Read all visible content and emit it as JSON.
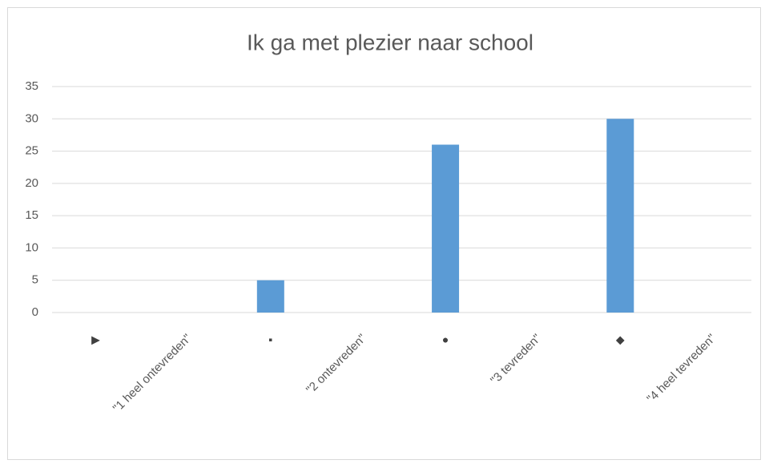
{
  "chart_data": {
    "type": "bar",
    "title": "Ik ga met plezier naar school",
    "categories": [
      "▶",
      "\"1 heel ontevreden\"",
      "▪",
      "\"2 ontevreden\"",
      "●",
      "\"3 tevreden\"",
      "◆",
      "\"4 heel tevreden\""
    ],
    "values": [
      0,
      null,
      5,
      null,
      26,
      null,
      30,
      null
    ],
    "color": "#5b9bd5",
    "ylim": [
      0,
      35
    ],
    "yticks": [
      0,
      5,
      10,
      15,
      20,
      25,
      30,
      35
    ],
    "grid": true
  }
}
